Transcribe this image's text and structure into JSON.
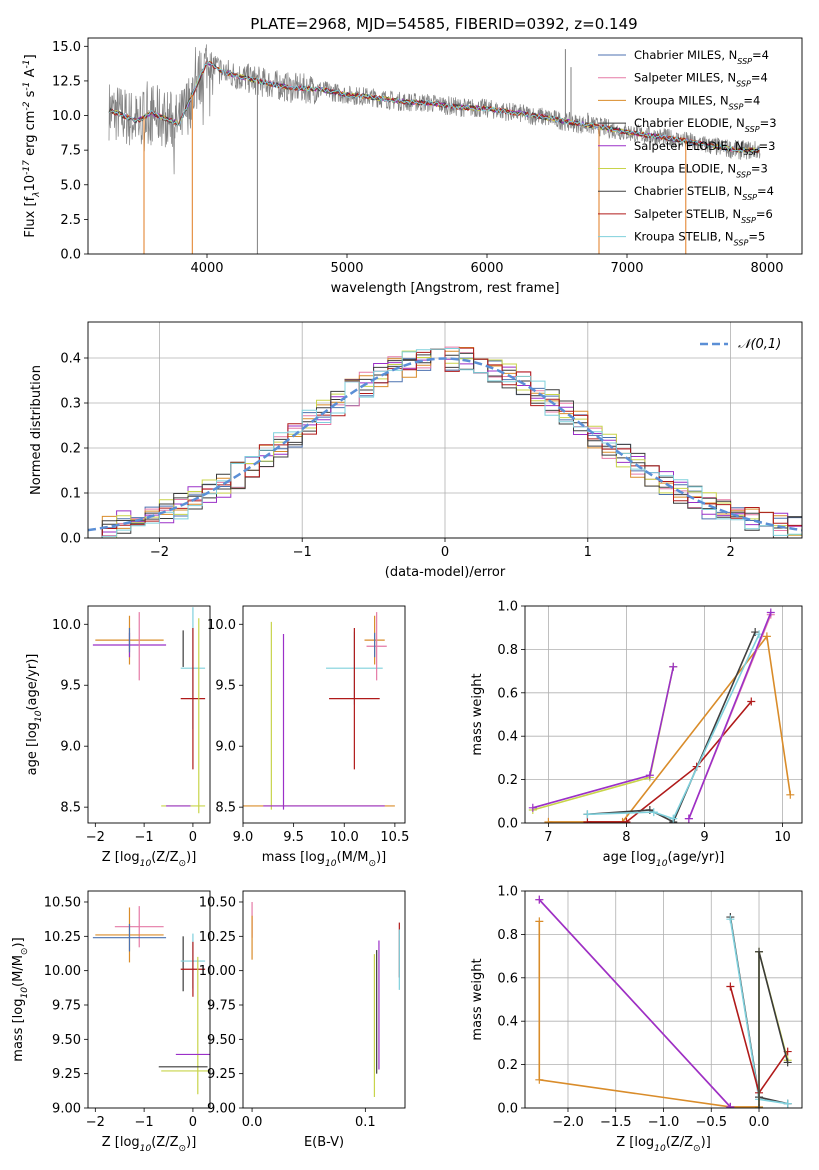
{
  "title": "PLATE=2968, MJD=54585, FIBERID=0392, z=0.149",
  "colors": {
    "Chabrier MILES": "#4c72b0",
    "Salpeter MILES": "#e57aa6",
    "Kroupa MILES": "#d98c2a",
    "Chabrier ELODIE": "#3a3a3a",
    "Salpeter ELODIE": "#9b30c8",
    "Kroupa ELODIE": "#c8d44a",
    "Chabrier STELIB": "#404040",
    "Salpeter STELIB": "#b01a1a",
    "Kroupa STELIB": "#7fd0dc",
    "normal": "#5b8fd6",
    "data": "#808080",
    "orange": "#e07b20",
    "pink": "#e070b0",
    "cyan": "#70c8d0",
    "olive": "#c8d86a",
    "darkred": "#b01a1a"
  },
  "chart_data": [
    {
      "type": "line",
      "id": "spectrum",
      "title": "PLATE=2968, MJD=54585, FIBERID=0392, z=0.149",
      "xlabel": "wavelength [Angstrom, rest frame]",
      "xlim": [
        3150,
        8250
      ],
      "ylim": [
        0,
        15.6
      ],
      "xticks": [
        4000,
        5000,
        6000,
        7000,
        8000
      ],
      "yticks": [
        0.0,
        2.5,
        5.0,
        7.5,
        10.0,
        12.5,
        15.0
      ],
      "ytick_labels": [
        "0.0",
        "2.5",
        "5.0",
        "7.5",
        "10.0",
        "12.5",
        "15.0"
      ],
      "legend_position": "top-right",
      "legend": [
        "Chabrier MILES, N$_{SSP}$=4",
        "Salpeter MILES, N$_{SSP}$=4",
        "Kroupa MILES, N$_{SSP}$=4",
        "Chabrier ELODIE, N$_{SSP}$=3",
        "Salpeter ELODIE, N$_{SSP}$=3",
        "Kroupa ELODIE, N$_{SSP}$=3",
        "Chabrier STELIB, N$_{SSP}$=4",
        "Salpeter STELIB, N$_{SSP}$=6",
        "Kroupa STELIB, N$_{SSP}$=5"
      ],
      "model_profile": {
        "x": [
          3300,
          3400,
          3500,
          3600,
          3700,
          3800,
          3900,
          4000,
          4100,
          4200,
          4400,
          4600,
          4800,
          5000,
          5200,
          5400,
          5600,
          5800,
          6000,
          6200,
          6400,
          6600,
          6800,
          7000,
          7200,
          7400,
          7600,
          7800
        ],
        "y": [
          10.4,
          10.0,
          9.6,
          10.2,
          9.8,
          9.4,
          11.6,
          13.9,
          13.2,
          12.9,
          12.4,
          12.0,
          11.9,
          11.5,
          11.3,
          11.0,
          10.9,
          10.6,
          10.5,
          10.2,
          9.9,
          9.5,
          9.2,
          8.8,
          8.5,
          8.2,
          7.8,
          7.5
        ]
      }
    },
    {
      "type": "line",
      "id": "residuals",
      "xlabel": "(data-model)/error",
      "ylabel": "Normed distribution",
      "xlim": [
        -2.5,
        2.5
      ],
      "ylim": [
        0,
        0.48
      ],
      "xticks": [
        -2,
        -1,
        0,
        1,
        2
      ],
      "xtick_labels": [
        "−2",
        "−1",
        "0",
        "1",
        "2"
      ],
      "yticks": [
        0.0,
        0.1,
        0.2,
        0.3,
        0.4
      ],
      "ytick_labels": [
        "0.0",
        "0.1",
        "0.2",
        "0.3",
        "0.4"
      ],
      "grid": true,
      "legend_position": "top-right",
      "legend": [
        "$\\mathcal{N}(0,1)$"
      ],
      "normal_mean": 0,
      "normal_sigma": 1,
      "bins": [
        -2.5,
        -2.4,
        -2.3,
        -2.2,
        -2.1,
        -2.0,
        -1.9,
        -1.8,
        -1.7,
        -1.6,
        -1.5,
        -1.4,
        -1.3,
        -1.2,
        -1.1,
        -1.0,
        -0.9,
        -0.8,
        -0.7,
        -0.6,
        -0.5,
        -0.4,
        -0.3,
        -0.2,
        -0.1,
        0.0,
        0.1,
        0.2,
        0.3,
        0.4,
        0.5,
        0.6,
        0.7,
        0.8,
        0.9,
        1.0,
        1.1,
        1.2,
        1.3,
        1.4,
        1.5,
        1.6,
        1.7,
        1.8,
        1.9,
        2.0,
        2.1,
        2.2,
        2.3,
        2.4
      ]
    },
    {
      "type": "scatter",
      "id": "age-vs-Z",
      "xlabel": "Z [log$_{10}$(Z/Z$_\\odot$)]",
      "ylabel": "age  [log$_{10}$(age/yr)]",
      "xlim": [
        -2.15,
        0.35
      ],
      "ylim": [
        8.37,
        10.15
      ],
      "xticks": [
        -2,
        -1,
        0
      ],
      "xtick_labels": [
        "−2",
        "−1",
        "0"
      ],
      "yticks": [
        8.5,
        9.0,
        9.5,
        10.0
      ],
      "ytick_labels": [
        "8.5",
        "9.0",
        "9.5",
        "10.0"
      ],
      "crosses": [
        {
          "series": "Kroupa MILES",
          "x": -1.3,
          "y": 9.87,
          "xerr": 0.7,
          "yerr": 0.2
        },
        {
          "series": "Salpeter ELODIE",
          "x": -1.3,
          "y": 9.83,
          "xerr": 0.75,
          "yerr": 0.1
        },
        {
          "series": "Chabrier MILES",
          "x": -1.3,
          "y": 9.87,
          "xerr": 0.0,
          "yerr": 0.1
        },
        {
          "series": "Salpeter MILES",
          "x": -1.1,
          "y": 9.82,
          "xerr": 0.0,
          "yerr": 0.28
        },
        {
          "series": "Chabrier ELODIE",
          "x": -0.2,
          "y": 9.8,
          "xerr": 0.0,
          "yerr": 0.15
        },
        {
          "series": "Kroupa STELIB",
          "x": 0.0,
          "y": 9.64,
          "xerr": 0.25,
          "yerr": 0.5
        },
        {
          "series": "Salpeter STELIB",
          "x": 0.0,
          "y": 9.39,
          "xerr": 0.25,
          "yerr": 0.58
        },
        {
          "series": "Kroupa ELODIE",
          "x": 0.12,
          "y": 9.25,
          "xerr": 0.0,
          "yerr": 0.8
        },
        {
          "series": "Kroupa ELODIE",
          "x": -0.2,
          "y": 8.51,
          "xerr": 0.45,
          "yerr": 0.0
        },
        {
          "series": "Salpeter ELODIE",
          "x": -0.3,
          "y": 8.51,
          "xerr": 0.25,
          "yerr": 0.0
        }
      ]
    },
    {
      "type": "scatter",
      "id": "age-vs-mass",
      "xlabel": "mass [log$_{10}$(M/M$_\\odot$)]",
      "xlim": [
        9.0,
        10.6
      ],
      "ylim": [
        8.37,
        10.15
      ],
      "xticks": [
        9.0,
        9.5,
        10.0,
        10.5
      ],
      "xtick_labels": [
        "9.0",
        "9.5",
        "10.0",
        "10.5"
      ],
      "yticks": [
        8.5,
        9.0,
        9.5,
        10.0
      ],
      "ytick_labels": [
        "8.5",
        "9.0",
        "9.5",
        "10.0"
      ],
      "crosses": [
        {
          "series": "Kroupa ELODIE",
          "x": 9.28,
          "y": 9.25,
          "xerr": 0.0,
          "yerr": 0.77
        },
        {
          "series": "Salpeter ELODIE",
          "x": 9.4,
          "y": 9.2,
          "xerr": 0.0,
          "yerr": 0.72
        },
        {
          "series": "Kroupa MILES",
          "x": 9.75,
          "y": 8.51,
          "xerr": 0.75,
          "yerr": 0.0
        },
        {
          "series": "Salpeter ELODIE",
          "x": 9.8,
          "y": 8.51,
          "xerr": 0.6,
          "yerr": 0.0
        },
        {
          "series": "Kroupa STELIB",
          "x": 10.1,
          "y": 9.64,
          "xerr": 0.28,
          "yerr": 0.3
        },
        {
          "series": "Salpeter STELIB",
          "x": 10.1,
          "y": 9.39,
          "xerr": 0.25,
          "yerr": 0.58
        },
        {
          "series": "Kroupa MILES",
          "x": 10.3,
          "y": 9.87,
          "xerr": 0.1,
          "yerr": 0.2
        },
        {
          "series": "Salpeter MILES",
          "x": 10.32,
          "y": 9.82,
          "xerr": 0.1,
          "yerr": 0.28
        },
        {
          "series": "Chabrier MILES",
          "x": 10.3,
          "y": 9.83,
          "xerr": 0.0,
          "yerr": 0.1
        }
      ]
    },
    {
      "type": "line",
      "id": "massweight-vs-age",
      "xlabel": "age  [log$_{10}$(age/yr)]",
      "ylabel": "mass weight",
      "xlim": [
        6.7,
        10.25
      ],
      "ylim": [
        0,
        1.0
      ],
      "xticks": [
        7,
        8,
        9,
        10
      ],
      "yticks": [
        0.0,
        0.2,
        0.4,
        0.6,
        0.8,
        1.0
      ],
      "ytick_labels": [
        "0.0",
        "0.2",
        "0.4",
        "0.6",
        "0.8",
        "1.0"
      ],
      "grid": true,
      "series": [
        {
          "name": "Kroupa ELODIE",
          "x": [
            6.8,
            8.3,
            8.6
          ],
          "y": [
            0.06,
            0.21,
            0.72
          ]
        },
        {
          "name": "Salpeter ELODIE",
          "x": [
            6.8,
            8.3,
            8.6
          ],
          "y": [
            0.07,
            0.22,
            0.72
          ]
        },
        {
          "name": "Kroupa MILES",
          "x": [
            7.0,
            7.95,
            9.8,
            10.1
          ],
          "y": [
            0.005,
            0.005,
            0.86,
            0.13
          ]
        },
        {
          "name": "Salpeter STELIB",
          "x": [
            7.5,
            8.0,
            8.9,
            9.6
          ],
          "y": [
            0.005,
            0.005,
            0.26,
            0.56
          ]
        },
        {
          "name": "Chabrier STELIB",
          "x": [
            7.5,
            8.3,
            8.6,
            9.65
          ],
          "y": [
            0.04,
            0.06,
            0.005,
            0.88
          ]
        },
        {
          "name": "Kroupa STELIB",
          "x": [
            7.5,
            8.35,
            8.6,
            9.7
          ],
          "y": [
            0.04,
            0.05,
            0.02,
            0.87
          ]
        },
        {
          "name": "Salpeter MILES",
          "x": [
            8.8,
            9.85
          ],
          "y": [
            0.02,
            0.96
          ]
        },
        {
          "name": "Salpeter ELODIE",
          "x": [
            8.8,
            9.85
          ],
          "y": [
            0.02,
            0.97
          ]
        }
      ]
    },
    {
      "type": "scatter",
      "id": "mass-vs-Z",
      "xlabel": "Z [log$_{10}$(Z/Z$_\\odot$)]",
      "ylabel": "mass [log$_{10}$(M/M$_\\odot$)]",
      "xlim": [
        -2.15,
        0.35
      ],
      "ylim": [
        9.0,
        10.58
      ],
      "xticks": [
        -2,
        -1,
        0
      ],
      "xtick_labels": [
        "−2",
        "−1",
        "0"
      ],
      "yticks": [
        9.0,
        9.25,
        9.5,
        9.75,
        10.0,
        10.25,
        10.5
      ],
      "ytick_labels": [
        "9.00",
        "9.25",
        "9.50",
        "9.75",
        "10.00",
        "10.25",
        "10.50"
      ],
      "crosses": [
        {
          "series": "Salpeter MILES",
          "x": -1.1,
          "y": 10.32,
          "xerr": 0.5,
          "yerr": 0.15
        },
        {
          "series": "Kroupa MILES",
          "x": -1.3,
          "y": 10.26,
          "xerr": 0.7,
          "yerr": 0.2
        },
        {
          "series": "Chabrier MILES",
          "x": -1.3,
          "y": 10.24,
          "xerr": 0.75,
          "yerr": 0.1
        },
        {
          "series": "Chabrier ELODIE",
          "x": -0.2,
          "y": 10.05,
          "xerr": 0.0,
          "yerr": 0.2
        },
        {
          "series": "Kroupa STELIB",
          "x": 0.0,
          "y": 10.07,
          "xerr": 0.25,
          "yerr": 0.2
        },
        {
          "series": "Salpeter STELIB",
          "x": 0.0,
          "y": 10.01,
          "xerr": 0.25,
          "yerr": 0.2
        },
        {
          "series": "Kroupa ELODIE",
          "x": 0.1,
          "y": 9.6,
          "xerr": 0.0,
          "yerr": 0.5
        },
        {
          "series": "Salpeter ELODIE",
          "x": 0.0,
          "y": 9.39,
          "xerr": 0.35,
          "yerr": 0.0
        },
        {
          "series": "Chabrier ELODIE",
          "x": -0.2,
          "y": 9.3,
          "xerr": 0.5,
          "yerr": 0.0
        },
        {
          "series": "Kroupa ELODIE",
          "x": -0.15,
          "y": 9.27,
          "xerr": 0.5,
          "yerr": 0.0
        }
      ]
    },
    {
      "type": "scatter",
      "id": "mass-vs-EBV",
      "xlabel": "E(B-V)",
      "xlim": [
        -0.008,
        0.135
      ],
      "ylim": [
        9.0,
        10.58
      ],
      "xticks": [
        0.0,
        0.1
      ],
      "xtick_labels": [
        "0.0",
        "0.1"
      ],
      "yticks": [
        9.0,
        9.25,
        9.5,
        9.75,
        10.0,
        10.25,
        10.5
      ],
      "ytick_labels": [
        "9.00",
        "9.25",
        "9.50",
        "9.75",
        "10.00",
        "10.25",
        "10.50"
      ],
      "crosses": [
        {
          "series": "Salpeter MILES",
          "x": 0.0,
          "y": 10.37,
          "xerr": 0.0,
          "yerr": 0.13
        },
        {
          "series": "Kroupa MILES",
          "x": 0.0,
          "y": 10.24,
          "xerr": 0.0,
          "yerr": 0.16
        },
        {
          "series": "Kroupa ELODIE",
          "x": 0.108,
          "y": 9.6,
          "xerr": 0.0,
          "yerr": 0.52
        },
        {
          "series": "Chabrier ELODIE",
          "x": 0.11,
          "y": 9.7,
          "xerr": 0.0,
          "yerr": 0.45
        },
        {
          "series": "Salpeter ELODIE",
          "x": 0.112,
          "y": 9.75,
          "xerr": 0.0,
          "yerr": 0.47
        },
        {
          "series": "Salpeter STELIB",
          "x": 0.13,
          "y": 10.15,
          "xerr": 0.0,
          "yerr": 0.2
        },
        {
          "series": "Kroupa STELIB",
          "x": 0.13,
          "y": 10.08,
          "xerr": 0.0,
          "yerr": 0.22
        }
      ]
    },
    {
      "type": "line",
      "id": "massweight-vs-Z",
      "xlabel": "Z [log$_{10}$(Z/Z$_\\odot$)]",
      "ylabel": "mass weight",
      "xlim": [
        -2.45,
        0.45
      ],
      "ylim": [
        0,
        1.0
      ],
      "xticks": [
        -2.0,
        -1.5,
        -1.0,
        -0.5,
        0.0
      ],
      "xtick_labels": [
        "−2.0",
        "−1.5",
        "−1.0",
        "−0.5",
        "0.0"
      ],
      "yticks": [
        0.0,
        0.2,
        0.4,
        0.6,
        0.8,
        1.0
      ],
      "ytick_labels": [
        "0.0",
        "0.2",
        "0.4",
        "0.6",
        "0.8",
        "1.0"
      ],
      "grid": true,
      "series": [
        {
          "name": "Kroupa MILES",
          "x": [
            -2.3,
            -2.3,
            -0.3,
            0.0
          ],
          "y": [
            0.86,
            0.13,
            0.005,
            0.005
          ]
        },
        {
          "name": "Salpeter MILES",
          "x": [
            -2.3,
            -0.3
          ],
          "y": [
            0.96,
            0.005
          ]
        },
        {
          "name": "Salpeter ELODIE",
          "x": [
            -2.3,
            -0.3
          ],
          "y": [
            0.96,
            0.005
          ]
        },
        {
          "name": "Chabrier STELIB",
          "x": [
            -0.3,
            0.0,
            0.3
          ],
          "y": [
            0.88,
            0.05,
            0.02
          ]
        },
        {
          "name": "Kroupa STELIB",
          "x": [
            -0.3,
            0.0,
            0.3
          ],
          "y": [
            0.87,
            0.04,
            0.02
          ]
        },
        {
          "name": "Salpeter STELIB",
          "x": [
            -0.3,
            0.0,
            0.3
          ],
          "y": [
            0.56,
            0.07,
            0.26
          ]
        },
        {
          "name": "Kroupa ELODIE",
          "x": [
            0.0,
            0.0,
            0.3
          ],
          "y": [
            0.0,
            0.72,
            0.22
          ]
        },
        {
          "name": "Chabrier ELODIE",
          "x": [
            0.0,
            0.0,
            0.3
          ],
          "y": [
            0.0,
            0.72,
            0.21
          ]
        }
      ]
    }
  ]
}
